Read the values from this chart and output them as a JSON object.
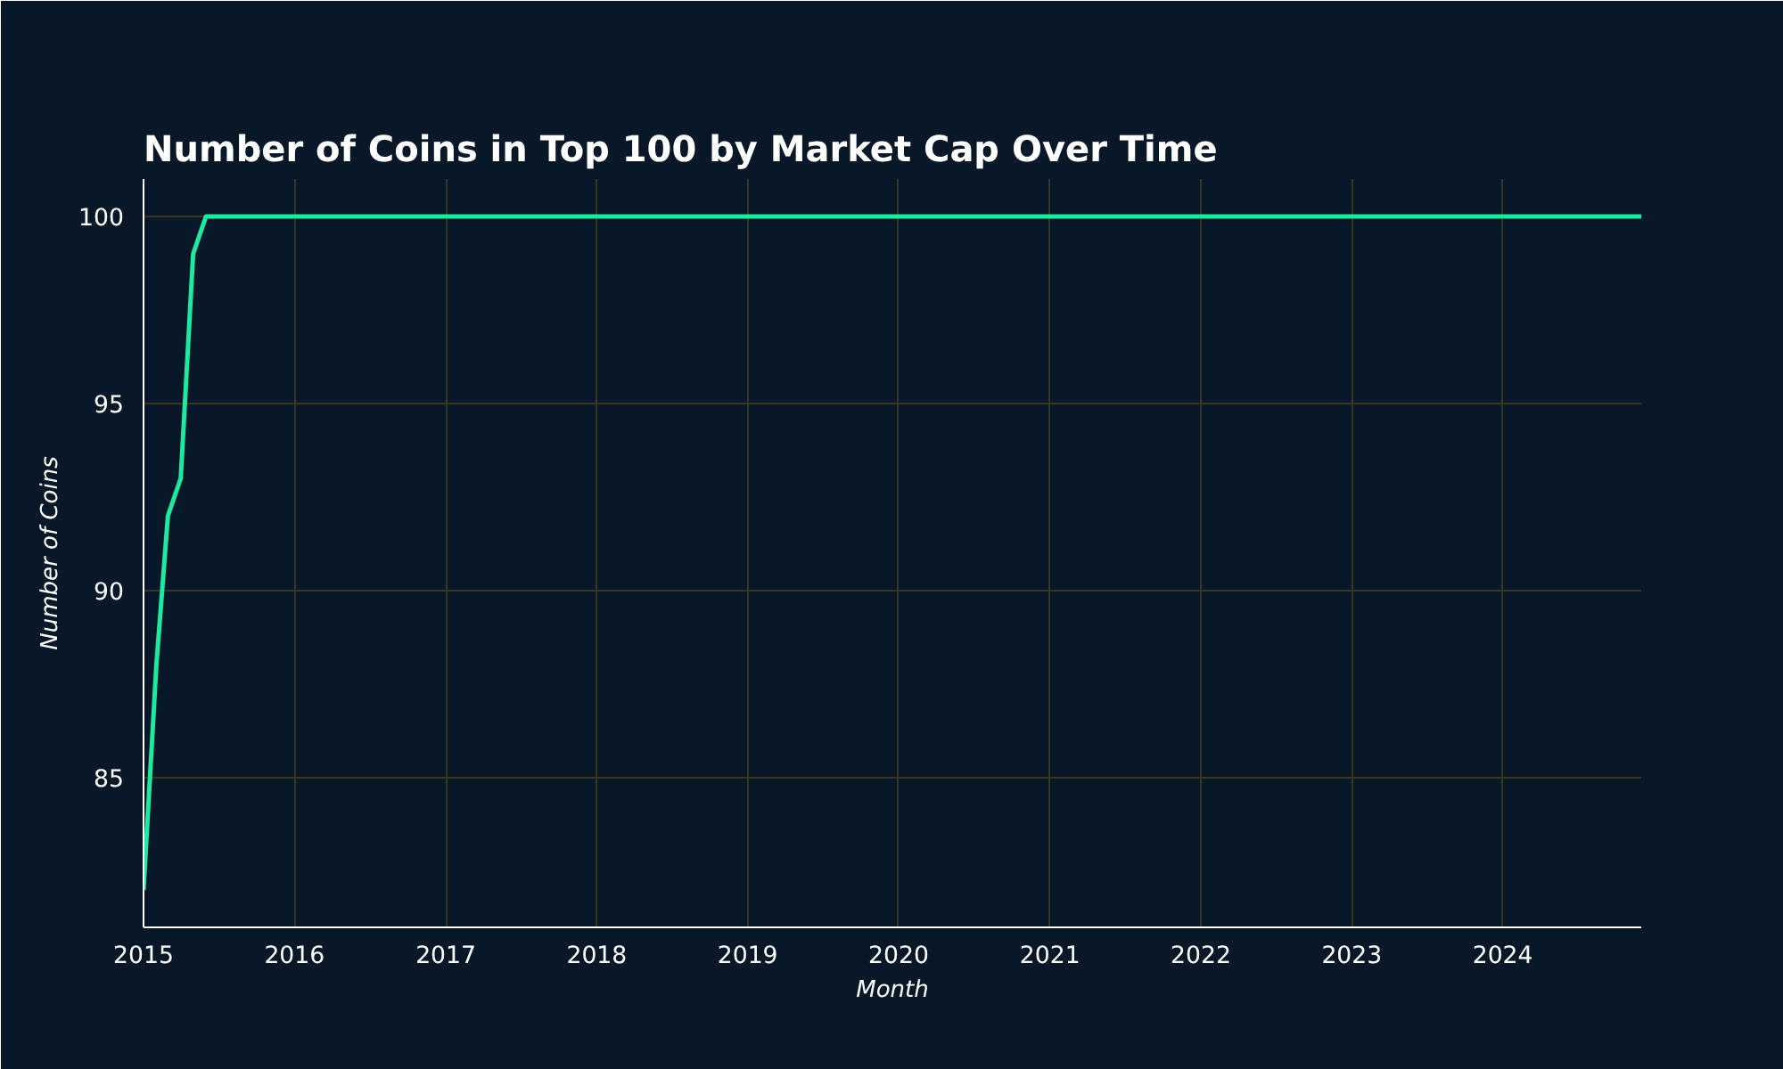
{
  "chart_data": {
    "type": "line",
    "title": "Number of Coins in Top 100 by Market Cap Over Time",
    "xlabel": "Month",
    "ylabel": "Number of Coins",
    "x": [
      "2015-01",
      "2015-02",
      "2015-03",
      "2015-04",
      "2015-05",
      "2015-06",
      "2024-12"
    ],
    "series": [
      {
        "color": "#1de9a0",
        "values": [
          82,
          88,
          92,
          93,
          99,
          100,
          100
        ]
      }
    ],
    "xlim": [
      "2015-01",
      "2024-12"
    ],
    "xticks": [
      "2015",
      "2016",
      "2017",
      "2018",
      "2019",
      "2020",
      "2021",
      "2022",
      "2023",
      "2024"
    ],
    "ylim": [
      81,
      101
    ],
    "yticks": [
      85,
      90,
      95,
      100
    ],
    "grid": true,
    "marker": "none",
    "line_style": "solid"
  }
}
